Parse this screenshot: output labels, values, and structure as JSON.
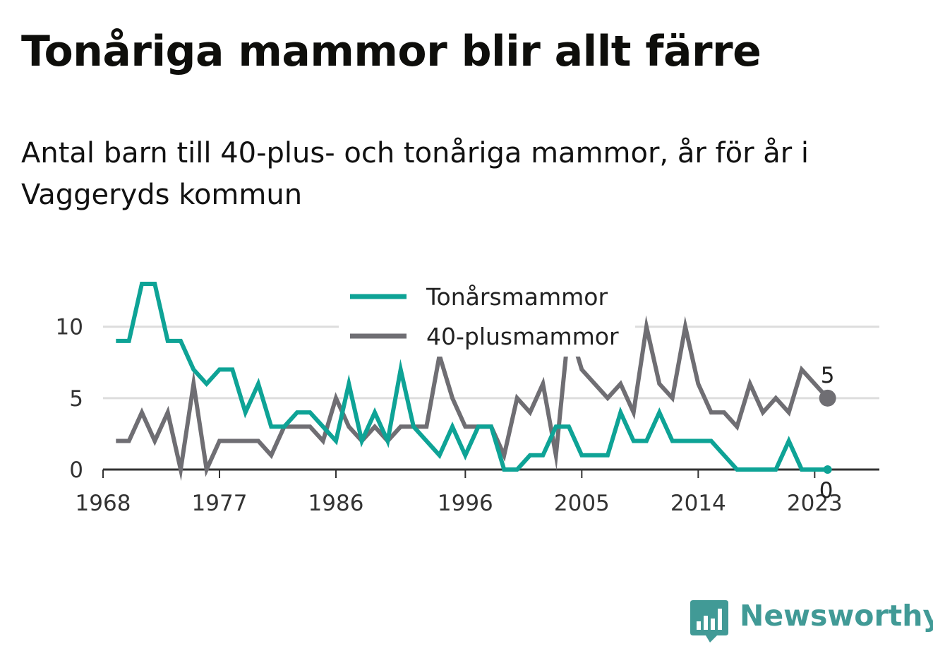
{
  "title": "Tonåriga mammor blir allt färre",
  "subtitle": "Antal barn till 40-plus- och tonåriga mammor, år för år i Vaggeryds kommun",
  "brand": "Newsworthy",
  "colors": {
    "teen": "#0ea396",
    "forty_plus": "#6f6e73",
    "grid": "#dddddd",
    "axis": "#333333",
    "brand": "#419a96"
  },
  "chart_data": {
    "type": "line",
    "x": [
      1969,
      1970,
      1971,
      1972,
      1973,
      1974,
      1975,
      1976,
      1977,
      1978,
      1979,
      1980,
      1981,
      1982,
      1983,
      1984,
      1985,
      1986,
      1987,
      1988,
      1989,
      1990,
      1991,
      1992,
      1993,
      1994,
      1995,
      1996,
      1997,
      1998,
      1999,
      2000,
      2001,
      2002,
      2003,
      2004,
      2005,
      2006,
      2007,
      2008,
      2009,
      2010,
      2011,
      2012,
      2013,
      2014,
      2015,
      2016,
      2017,
      2018,
      2019,
      2020,
      2021,
      2022,
      2023,
      2024
    ],
    "series": [
      {
        "name": "Tonårsmammor",
        "color": "#0ea396",
        "values": [
          9,
          9,
          13,
          13,
          9,
          9,
          7,
          6,
          7,
          7,
          4,
          6,
          3,
          3,
          4,
          4,
          3,
          2,
          6,
          2,
          4,
          2,
          7,
          3,
          2,
          1,
          3,
          1,
          3,
          3,
          0,
          0,
          1,
          1,
          3,
          3,
          1,
          1,
          1,
          4,
          2,
          2,
          4,
          2,
          2,
          2,
          2,
          1,
          0,
          0,
          0,
          0,
          2,
          0,
          0,
          0
        ]
      },
      {
        "name": "40-plusmammor",
        "color": "#6f6e73",
        "values": [
          2,
          2,
          4,
          2,
          4,
          0,
          6,
          0,
          2,
          2,
          2,
          2,
          1,
          3,
          3,
          3,
          2,
          5,
          3,
          2,
          3,
          2,
          3,
          3,
          3,
          8,
          5,
          3,
          3,
          3,
          1,
          5,
          4,
          6,
          1,
          10,
          7,
          6,
          5,
          6,
          4,
          10,
          6,
          5,
          10,
          6,
          4,
          4,
          3,
          6,
          4,
          5,
          4,
          7,
          6,
          5
        ]
      }
    ],
    "x_ticks": [
      "1968",
      "1977",
      "1986",
      "1996",
      "2005",
      "2014",
      "2023"
    ],
    "x_tick_values": [
      1968,
      1977,
      1986,
      1996,
      2005,
      2014,
      2023
    ],
    "y_ticks": [
      "0",
      "5",
      "10"
    ],
    "y_tick_values": [
      0,
      5,
      10
    ],
    "xlim": [
      1968,
      2028
    ],
    "ylim": [
      0,
      13
    ],
    "end_labels": [
      "5",
      "0"
    ],
    "grid": true,
    "legend": [
      "Tonårsmammor",
      "40-plusmammor"
    ],
    "legend_position": "top-center"
  }
}
